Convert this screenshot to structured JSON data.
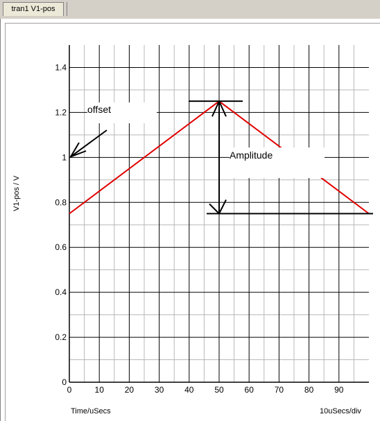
{
  "tabs": [
    {
      "label": "tran1 V1-pos"
    }
  ],
  "chart_data": {
    "type": "line",
    "xlabel": "Time/uSecs",
    "ylabel": "V1-pos / V",
    "scale_label": "10uSecs/div",
    "xlim": [
      0,
      100
    ],
    "ylim": [
      0,
      1.5
    ],
    "x_ticks": [
      "0",
      "10",
      "20",
      "30",
      "40",
      "50",
      "60",
      "70",
      "80",
      "90"
    ],
    "y_ticks": [
      "0",
      "0.2",
      "0.4",
      "0.6",
      "0.8",
      "1",
      "1.2",
      "1.4"
    ],
    "grid": true,
    "series": [
      {
        "color": "#e00000",
        "x": [
          0,
          50,
          100
        ],
        "y": [
          0.75,
          1.25,
          0.75
        ]
      }
    ],
    "annotations": {
      "offset_label": "offset",
      "amplitude_label": "Amplitude"
    }
  }
}
